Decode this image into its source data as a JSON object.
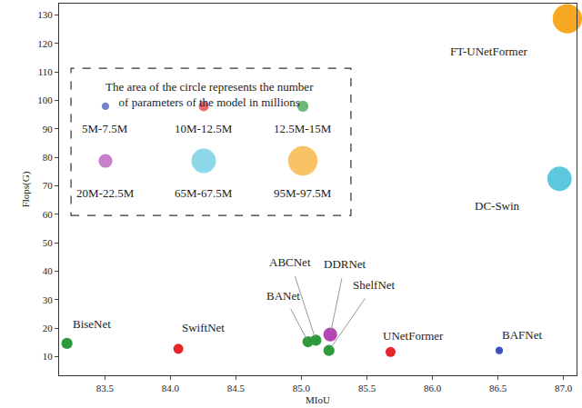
{
  "chart_data": {
    "type": "scatter",
    "marker": "circle",
    "grid": false,
    "x_label": "MIoU",
    "y_label": "Flops(G)",
    "xlim": [
      83.15,
      87.1
    ],
    "xticks": [
      83.5,
      {
        "value": 84,
        "label": "84.0"
      },
      84.5,
      {
        "value": 85,
        "label": "85.0"
      },
      85.5,
      {
        "value": 86,
        "label": "86.0"
      },
      86.5,
      {
        "value": 87,
        "label": "87.0"
      }
    ],
    "ylim": [
      3.5,
      134
    ],
    "yticks": [
      10,
      20,
      30,
      40,
      50,
      60,
      70,
      80,
      90,
      100,
      110,
      120,
      130
    ],
    "point_labels": [
      "BiseNet",
      "SwiftNet",
      "BANet",
      "ABCNet",
      "DDRNet",
      "ShelfNet",
      "UNetFormer",
      "BAFNet",
      "DC-Swin",
      "FT-UNetFormer"
    ],
    "x": [
      83.21,
      84.06,
      85.05,
      85.11,
      85.22,
      85.21,
      85.68,
      86.51,
      86.97,
      87.03
    ],
    "y": [
      14.7,
      12.8,
      15.3,
      15.8,
      17.8,
      12.2,
      11.7,
      12.2,
      72.5,
      128.7
    ],
    "params": [
      13.75,
      11.25,
      13.75,
      13.75,
      21.25,
      13.75,
      11.25,
      6.25,
      66.25,
      96.25
    ],
    "colors": [
      "#2e9a3c",
      "#e8262a",
      "#2e9a3c",
      "#2e9a3c",
      "#b348b3",
      "#2e9a3c",
      "#e8262a",
      "#3a4fc0",
      "#5cc8de",
      "#f7a823"
    ],
    "size_legend": {
      "title": [
        "The area of the circle represents the number",
        "of parameters of the model in millions"
      ],
      "items": [
        {
          "label": "5M-7.5M",
          "params": 6.25,
          "color": "#3a4fc0"
        },
        {
          "label": "10M-12.5M",
          "params": 11.25,
          "color": "#e8262a"
        },
        {
          "label": "12.5M-15M",
          "params": 13.75,
          "color": "#2e9a3c"
        },
        {
          "label": "20M-22.5M",
          "params": 21.25,
          "color": "#b348b3"
        },
        {
          "label": "65M-67.5M",
          "params": 66.25,
          "color": "#5cc8de"
        },
        {
          "label": "95M-97.5M",
          "params": 96.25,
          "color": "#f7a823"
        }
      ]
    }
  }
}
